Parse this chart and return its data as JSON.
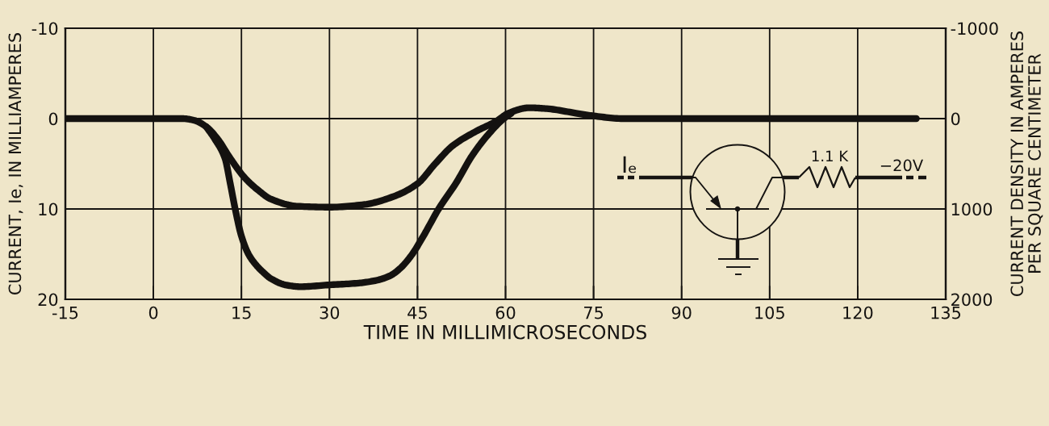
{
  "chart_data": {
    "type": "line",
    "xlabel": "TIME IN MILLIMICROSECONDS",
    "ylabel": "CURRENT, Ie, IN MILLIAMPERES",
    "y2label": "CURRENT DENSITY IN AMPERES\nPER SQUARE CENTIMETER",
    "annotations": [
      "Iₑ",
      "1.1 K",
      "−20V"
    ],
    "xlim": [
      -15,
      135
    ],
    "xticks": [
      -15,
      0,
      15,
      30,
      45,
      60,
      75,
      90,
      105,
      120,
      135
    ],
    "ylim": [
      20,
      -10
    ],
    "yticks": [
      -10,
      0,
      10,
      20
    ],
    "y2lim": [
      2000,
      -1000
    ],
    "y2ticks": [
      -1000,
      0,
      1000,
      2000
    ],
    "grid": true,
    "marker": "none",
    "line_style": "solid",
    "series": [
      {
        "color": "#141210",
        "x": [
          -15,
          5,
          7,
          9,
          11,
          13,
          15.5,
          18,
          20,
          24.6,
          30,
          36,
          41,
          45,
          48,
          51,
          55,
          58.4,
          60.5,
          64,
          67,
          72,
          75,
          80,
          130
        ],
        "values": [
          0,
          0,
          0.2,
          0.9,
          2.3,
          4.3,
          6.5,
          8.0,
          8.9,
          9.7,
          9.8,
          9.5,
          8.6,
          7.2,
          5.0,
          3.0,
          1.4,
          0.3,
          -0.6,
          -1.2,
          -1.1,
          -0.6,
          -0.3,
          0,
          0
        ]
      },
      {
        "color": "#141210",
        "x": [
          9,
          10.5,
          12.2,
          13.1,
          14,
          15,
          16.2,
          17.5,
          18.7,
          20,
          22.5,
          25,
          30,
          35,
          38,
          40.3,
          42,
          44,
          46,
          48.6,
          51.6,
          54.3,
          57,
          59.7,
          61
        ],
        "values": [
          0.9,
          2.3,
          4.4,
          7.2,
          10.2,
          13.0,
          15.0,
          16.2,
          17.0,
          17.7,
          18.4,
          18.6,
          18.4,
          18.2,
          17.9,
          17.4,
          16.6,
          15.1,
          13.0,
          10.0,
          7.1,
          4.1,
          1.8,
          0,
          -0.6
        ]
      }
    ]
  }
}
